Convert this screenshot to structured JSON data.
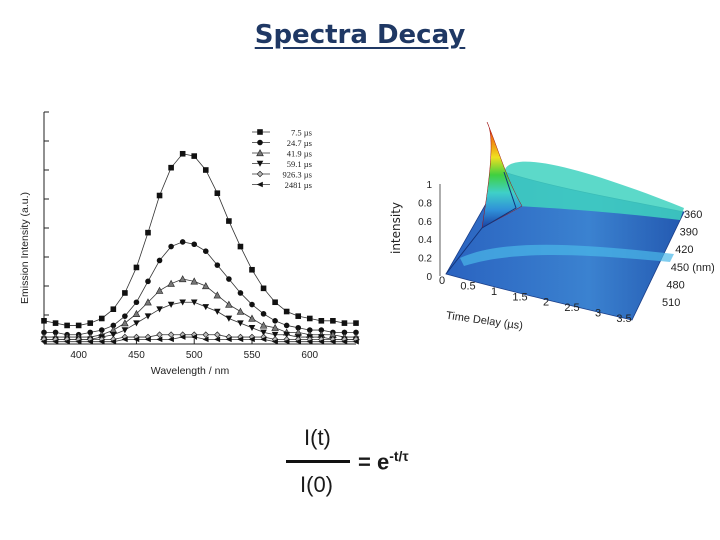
{
  "title": "Spectra Decay",
  "formula": {
    "numerator": "I(t)",
    "denominator": "I(0)",
    "equals_text": "= e",
    "exponent": "-t/τ"
  },
  "chart_data": [
    {
      "type": "line",
      "xlabel": "Wavelength / nm",
      "ylabel": "Emission Intensity (a.u.)",
      "xlim": [
        370,
        640
      ],
      "ylim": [
        0,
        1.0
      ],
      "x_ticks": [
        "400",
        "450",
        "500",
        "550",
        "600"
      ],
      "grid": false,
      "legend_position": "top-right",
      "x": [
        370,
        380,
        390,
        400,
        410,
        420,
        430,
        440,
        450,
        460,
        470,
        480,
        490,
        500,
        510,
        520,
        530,
        540,
        550,
        560,
        570,
        580,
        590,
        600,
        610,
        620,
        630,
        640
      ],
      "series": [
        {
          "name": "7.5 µs",
          "marker": "square",
          "values": [
            0.1,
            0.09,
            0.08,
            0.08,
            0.09,
            0.11,
            0.15,
            0.22,
            0.33,
            0.48,
            0.64,
            0.76,
            0.82,
            0.81,
            0.75,
            0.65,
            0.53,
            0.42,
            0.32,
            0.24,
            0.18,
            0.14,
            0.12,
            0.11,
            0.1,
            0.1,
            0.09,
            0.09
          ]
        },
        {
          "name": "24.7 µs",
          "marker": "circle",
          "values": [
            0.05,
            0.05,
            0.04,
            0.04,
            0.05,
            0.06,
            0.08,
            0.12,
            0.18,
            0.27,
            0.36,
            0.42,
            0.44,
            0.43,
            0.4,
            0.34,
            0.28,
            0.22,
            0.17,
            0.13,
            0.1,
            0.08,
            0.07,
            0.06,
            0.06,
            0.05,
            0.05,
            0.05
          ]
        },
        {
          "name": "41.9 µs",
          "marker": "triangle-up",
          "values": [
            0.03,
            0.03,
            0.03,
            0.03,
            0.03,
            0.04,
            0.06,
            0.09,
            0.13,
            0.18,
            0.23,
            0.26,
            0.28,
            0.27,
            0.25,
            0.21,
            0.17,
            0.14,
            0.11,
            0.08,
            0.07,
            0.05,
            0.05,
            0.04,
            0.04,
            0.04,
            0.03,
            0.03
          ]
        },
        {
          "name": "59.1 µs",
          "marker": "triangle-down",
          "values": [
            0.02,
            0.02,
            0.02,
            0.02,
            0.02,
            0.03,
            0.04,
            0.06,
            0.09,
            0.12,
            0.15,
            0.17,
            0.18,
            0.18,
            0.16,
            0.14,
            0.11,
            0.09,
            0.07,
            0.05,
            0.04,
            0.04,
            0.03,
            0.03,
            0.03,
            0.02,
            0.02,
            0.02
          ]
        },
        {
          "name": "926.3 µs",
          "marker": "diamond",
          "values": [
            0.02,
            0.02,
            0.02,
            0.02,
            0.02,
            0.02,
            0.02,
            0.03,
            0.03,
            0.03,
            0.04,
            0.04,
            0.04,
            0.04,
            0.04,
            0.04,
            0.03,
            0.03,
            0.03,
            0.03,
            0.02,
            0.02,
            0.02,
            0.02,
            0.02,
            0.02,
            0.02,
            0.02
          ]
        },
        {
          "name": "2481 µs",
          "marker": "triangle-left",
          "values": [
            0.01,
            0.01,
            0.01,
            0.01,
            0.01,
            0.01,
            0.01,
            0.02,
            0.02,
            0.02,
            0.02,
            0.02,
            0.03,
            0.03,
            0.02,
            0.02,
            0.02,
            0.02,
            0.02,
            0.02,
            0.01,
            0.01,
            0.01,
            0.01,
            0.01,
            0.01,
            0.01,
            0.01
          ]
        }
      ]
    },
    {
      "type": "surface",
      "zlabel": "intensity",
      "xlabel": "Time Delay (µs)",
      "x_ticks": [
        "0",
        "0.5",
        "1",
        "1.5",
        "2",
        "2.5",
        "3",
        "3.5"
      ],
      "y_ticks": [
        "360",
        "390",
        "420",
        "450 (nm)",
        "480",
        "510"
      ],
      "z_ticks": [
        "0",
        "0.2",
        "0.4",
        "0.6",
        "0.8",
        "1"
      ],
      "colormap": [
        "#1a3fa0",
        "#2f8fd8",
        "#3fd0c8",
        "#3fd040",
        "#f0e020",
        "#f08010",
        "#e01010"
      ]
    }
  ]
}
